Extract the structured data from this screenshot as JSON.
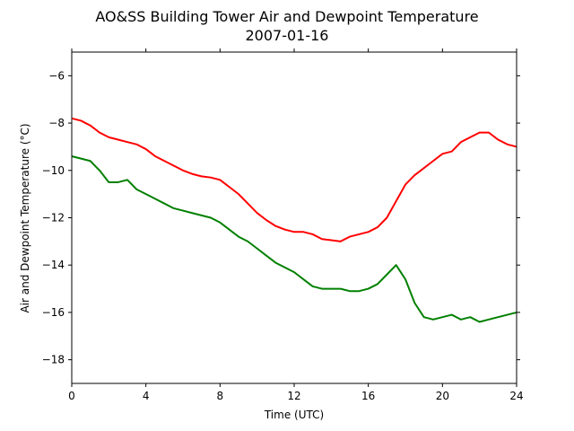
{
  "chart_data": {
    "type": "line",
    "title": "AO&SS Building Tower Air and Dewpoint Temperature",
    "subtitle": "2007-01-16",
    "xlabel": "Time (UTC)",
    "ylabel": "Air and Dewpoint Temperature (°C)",
    "xlim": [
      0,
      24
    ],
    "ylim": [
      -19,
      -5
    ],
    "xticks": [
      0,
      4,
      8,
      12,
      16,
      20,
      24
    ],
    "yticks": [
      -18,
      -16,
      -14,
      -12,
      -10,
      -8,
      -6
    ],
    "grid": false,
    "legend": false,
    "series": [
      {
        "color": "#ff0000",
        "x": [
          0,
          0.5,
          1,
          1.5,
          2,
          2.5,
          3,
          3.5,
          4,
          4.5,
          5,
          5.5,
          6,
          6.5,
          7,
          7.5,
          8,
          8.5,
          9,
          9.5,
          10,
          10.5,
          11,
          11.5,
          12,
          12.5,
          13,
          13.5,
          14,
          14.5,
          15,
          15.5,
          16,
          16.5,
          17,
          17.5,
          18,
          18.5,
          19,
          19.5,
          20,
          20.5,
          21,
          21.5,
          22,
          22.5,
          23,
          23.5,
          24
        ],
        "y": [
          -7.8,
          -7.9,
          -8.1,
          -8.4,
          -8.6,
          -8.7,
          -8.8,
          -8.9,
          -9.1,
          -9.4,
          -9.6,
          -9.8,
          -10.0,
          -10.15,
          -10.25,
          -10.3,
          -10.4,
          -10.7,
          -11.0,
          -11.4,
          -11.8,
          -12.1,
          -12.35,
          -12.5,
          -12.6,
          -12.6,
          -12.7,
          -12.9,
          -12.95,
          -13.0,
          -12.8,
          -12.7,
          -12.6,
          -12.4,
          -12.0,
          -11.3,
          -10.6,
          -10.2,
          -9.9,
          -9.6,
          -9.3,
          -9.2,
          -8.8,
          -8.6,
          -8.4,
          -8.4,
          -8.7,
          -8.9,
          -9.0
        ]
      },
      {
        "color": "#008000",
        "x": [
          0,
          0.5,
          1,
          1.5,
          2,
          2.5,
          3,
          3.5,
          4,
          4.5,
          5,
          5.5,
          6,
          6.5,
          7,
          7.5,
          8,
          8.5,
          9,
          9.5,
          10,
          10.5,
          11,
          11.5,
          12,
          12.5,
          13,
          13.5,
          14,
          14.5,
          15,
          15.5,
          16,
          16.5,
          17,
          17.5,
          18,
          18.5,
          19,
          19.5,
          20,
          20.5,
          21,
          21.5,
          22,
          22.5,
          23,
          23.5,
          24
        ],
        "y": [
          -9.4,
          -9.5,
          -9.6,
          -10.0,
          -10.5,
          -10.5,
          -10.4,
          -10.8,
          -11.0,
          -11.2,
          -11.4,
          -11.6,
          -11.7,
          -11.8,
          -11.9,
          -12.0,
          -12.2,
          -12.5,
          -12.8,
          -13.0,
          -13.3,
          -13.6,
          -13.9,
          -14.1,
          -14.3,
          -14.6,
          -14.9,
          -15.0,
          -15.0,
          -15.0,
          -15.1,
          -15.1,
          -15.0,
          -14.8,
          -14.4,
          -14.0,
          -14.6,
          -15.6,
          -16.2,
          -16.3,
          -16.2,
          -16.1,
          -16.3,
          -16.2,
          -16.4,
          -16.3,
          -16.2,
          -16.1,
          -16.0
        ]
      }
    ]
  }
}
